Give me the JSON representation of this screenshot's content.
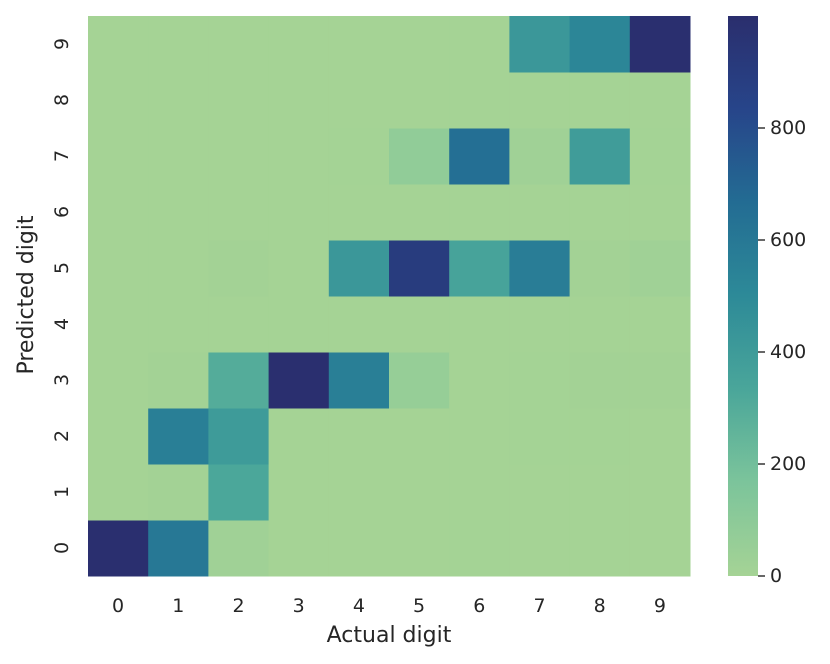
{
  "chart_data": {
    "type": "heatmap",
    "xlabel": "Actual digit",
    "ylabel": "Predicted digit",
    "x_categories": [
      "0",
      "1",
      "2",
      "3",
      "4",
      "5",
      "6",
      "7",
      "8",
      "9"
    ],
    "y_categories": [
      "0",
      "1",
      "2",
      "3",
      "4",
      "5",
      "6",
      "7",
      "8",
      "9"
    ],
    "y_order": "bottom-to-top",
    "matrix": [
      [
        990,
        600,
        20,
        0,
        0,
        0,
        5,
        0,
        0,
        0
      ],
      [
        0,
        10,
        330,
        0,
        0,
        0,
        0,
        0,
        0,
        0
      ],
      [
        0,
        560,
        400,
        0,
        0,
        0,
        0,
        5,
        5,
        0
      ],
      [
        0,
        10,
        300,
        990,
        560,
        60,
        0,
        5,
        10,
        10
      ],
      [
        0,
        0,
        0,
        0,
        0,
        0,
        0,
        0,
        0,
        0
      ],
      [
        0,
        0,
        10,
        0,
        420,
        900,
        350,
        570,
        10,
        20
      ],
      [
        0,
        0,
        0,
        0,
        0,
        0,
        0,
        0,
        0,
        0
      ],
      [
        0,
        0,
        0,
        0,
        5,
        80,
        650,
        20,
        390,
        5
      ],
      [
        0,
        0,
        0,
        0,
        0,
        0,
        0,
        0,
        0,
        0
      ],
      [
        0,
        0,
        0,
        0,
        0,
        0,
        0,
        420,
        520,
        990
      ]
    ],
    "colorbar": {
      "min": 0,
      "max": 1000,
      "ticks": [
        0,
        200,
        400,
        600,
        800
      ],
      "colormap": "crest",
      "colors": [
        "#a5d395",
        "#7cc49b",
        "#4aa69a",
        "#2d8a98",
        "#236c93",
        "#27458a",
        "#2a2e6d"
      ]
    },
    "grid": false
  }
}
